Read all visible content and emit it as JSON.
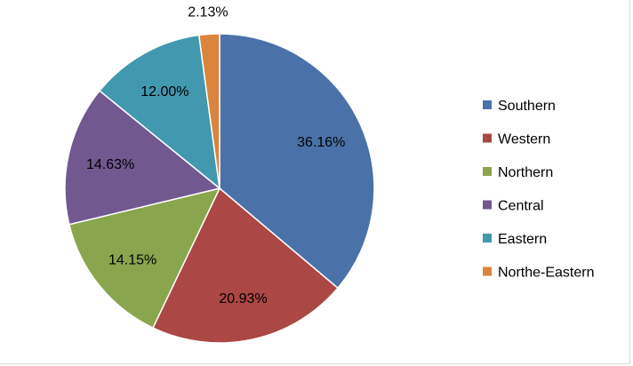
{
  "chart_data": {
    "type": "pie",
    "title": "",
    "legend_position": "right",
    "slices": [
      {
        "name": "Southern",
        "value": 36.16,
        "label": "36.16%",
        "color": "#4a72a8"
      },
      {
        "name": "Western",
        "value": 20.93,
        "label": "20.93%",
        "color": "#ab4744"
      },
      {
        "name": "Northern",
        "value": 14.15,
        "label": "14.15%",
        "color": "#89a54e"
      },
      {
        "name": "Central",
        "value": 14.63,
        "label": "14.63%",
        "color": "#71588f"
      },
      {
        "name": "Eastern",
        "value": 12.0,
        "label": "12.00%",
        "color": "#4298af"
      },
      {
        "name": "Northe-Eastern",
        "value": 2.13,
        "label": "2.13%",
        "color": "#db843d"
      }
    ]
  }
}
